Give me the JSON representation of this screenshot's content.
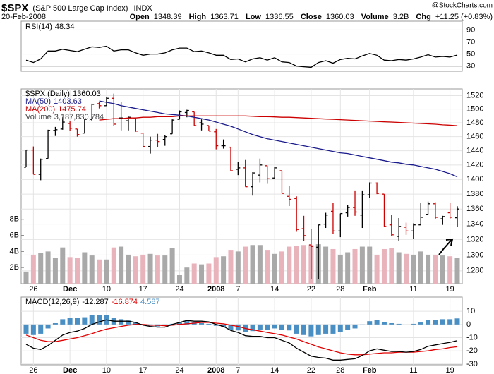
{
  "header": {
    "symbol": "$SPX",
    "name": "(S&P 500 Large Cap Index)",
    "exchange": "INDX",
    "date": "20-Feb-2008",
    "source": "@StockCharts.com",
    "stat_labels": [
      "Open",
      "High",
      "Low",
      "Close",
      "Volume",
      "Chg"
    ],
    "volume": "3.2B",
    "change": "+11.25 (+0.83%)"
  },
  "chart_data": [
    {
      "type": "line",
      "name": "RSI(14)",
      "ylim": [
        21.5,
        104.5
      ],
      "yticks": [
        30,
        50,
        70,
        90
      ],
      "levels": [
        30,
        70
      ],
      "grid": true,
      "series": [
        {
          "color": "#000000",
          "values": [
            40,
            36,
            42,
            55,
            55,
            58,
            56,
            54,
            58,
            62,
            61,
            63,
            55,
            57,
            57,
            52,
            48,
            50,
            50,
            52,
            57,
            60,
            60,
            54,
            55,
            52,
            48,
            48,
            41,
            42,
            37,
            42,
            44,
            40,
            44,
            37,
            36,
            30,
            29,
            28,
            36,
            39,
            35,
            41,
            43,
            42,
            47,
            51,
            48,
            40,
            39,
            41,
            40,
            42,
            45,
            49,
            45,
            46,
            45,
            48.34
          ]
        }
      ]
    },
    {
      "type": "ohlc",
      "name": "$SPX (Daily)",
      "log": true,
      "grid": true,
      "ylim": [
        1264,
        1530
      ],
      "yticks": [
        1280,
        1300,
        1320,
        1340,
        1360,
        1380,
        1400,
        1420,
        1440,
        1460,
        1480,
        1500,
        1520
      ],
      "up_color": "#000000",
      "down_color": "#cc0000",
      "categories": [
        null,
        "26",
        null,
        null,
        null,
        null,
        "Dec",
        null,
        null,
        null,
        null,
        "10",
        null,
        null,
        null,
        null,
        "17",
        null,
        null,
        null,
        null,
        "24",
        null,
        null,
        null,
        null,
        "2008",
        null,
        null,
        "7",
        null,
        null,
        null,
        null,
        "14",
        null,
        null,
        null,
        null,
        "22",
        null,
        null,
        null,
        "28",
        null,
        null,
        null,
        "Feb",
        null,
        null,
        null,
        null,
        null,
        "11",
        null,
        null,
        null,
        null,
        "19",
        null
      ],
      "open": [
        1417,
        1441,
        1407,
        1429,
        1469,
        1471,
        1479,
        1471,
        1465,
        1485,
        1508,
        1505,
        1516,
        1487,
        1483,
        1487,
        1465,
        1446,
        1455,
        1456,
        1464,
        1485,
        1495,
        1496,
        1480,
        1476,
        1467,
        1447,
        1445,
        1414,
        1416,
        1390,
        1406,
        1419,
        1402,
        1412,
        1377,
        1374,
        1334,
        1313,
        1310,
        1340,
        1357,
        1331,
        1355,
        1362,
        1352,
        1379,
        1395,
        1380,
        1339,
        1324,
        1336,
        1331,
        1339,
        1353,
        1367,
        1347,
        1355,
        1348.39
      ],
      "high": [
        1441,
        1446,
        1429,
        1470,
        1474,
        1488,
        1482,
        1471,
        1486,
        1508,
        1511,
        1518,
        1523,
        1511,
        1489,
        1487,
        1465,
        1460,
        1464,
        1462,
        1485,
        1498,
        1499,
        1496,
        1485,
        1476,
        1471,
        1456,
        1445,
        1424,
        1427,
        1410,
        1429,
        1419,
        1417,
        1412,
        1391,
        1377,
        1351,
        1334,
        1339,
        1355,
        1368,
        1354,
        1365,
        1385,
        1385,
        1396,
        1396,
        1380,
        1352,
        1348,
        1342,
        1341,
        1368,
        1370,
        1369,
        1351,
        1368,
        1363.71
      ],
      "low": [
        1417,
        1407,
        1399,
        1429,
        1461,
        1470,
        1468,
        1460,
        1465,
        1483,
        1501,
        1505,
        1475,
        1469,
        1469,
        1467,
        1445,
        1436,
        1445,
        1447,
        1464,
        1485,
        1488,
        1476,
        1469,
        1468,
        1442,
        1443,
        1411,
        1406,
        1390,
        1378,
        1396,
        1394,
        1402,
        1381,
        1364,
        1330,
        1318,
        1270,
        1270,
        1335,
        1327,
        1323,
        1350,
        1351,
        1335,
        1375,
        1380,
        1336,
        1324,
        1318,
        1326,
        1321,
        1339,
        1353,
        1347,
        1339,
        1347,
        1336.55
      ],
      "close": [
        1441,
        1407,
        1428,
        1469,
        1470,
        1481,
        1472,
        1463,
        1485,
        1507,
        1505,
        1516,
        1478,
        1487,
        1488,
        1468,
        1446,
        1455,
        1453,
        1460,
        1484,
        1496,
        1498,
        1476,
        1478,
        1468,
        1447,
        1447,
        1412,
        1416,
        1390,
        1409,
        1420,
        1401,
        1416,
        1381,
        1373,
        1333,
        1325,
        1311,
        1339,
        1352,
        1331,
        1354,
        1362,
        1356,
        1379,
        1395,
        1381,
        1337,
        1326,
        1337,
        1331,
        1339,
        1349,
        1367,
        1349,
        1350,
        1349,
        1360.03
      ],
      "series": [
        {
          "name": "MA(50)",
          "color": "#1a1a8c",
          "values": [
            null,
            null,
            null,
            null,
            null,
            null,
            null,
            null,
            null,
            null,
            1512,
            1510,
            1508,
            1505,
            1503,
            1501,
            1499,
            1497,
            1495,
            1493,
            1492,
            1491,
            1490,
            1488,
            1486,
            1484,
            1481,
            1478,
            1475,
            1471,
            1467,
            1463,
            1460,
            1457,
            1455,
            1453,
            1451,
            1449,
            1447,
            1445,
            1443,
            1441,
            1439,
            1437,
            1436,
            1434,
            1432,
            1430,
            1428,
            1426,
            1424,
            1423,
            1421,
            1420,
            1418,
            1416,
            1414,
            1411,
            1408,
            1403.63
          ]
        },
        {
          "name": "MA(200)",
          "color": "#cc0000",
          "values": [
            null,
            null,
            null,
            null,
            null,
            null,
            null,
            null,
            null,
            null,
            1484,
            1485,
            1486,
            1486,
            1487,
            1487,
            1488,
            1488,
            1489,
            1489,
            1489,
            1490,
            1490,
            1490,
            1490,
            1490,
            1490,
            1490,
            1490,
            1490,
            1490,
            1489.5,
            1489,
            1489,
            1488.5,
            1488,
            1488,
            1487.5,
            1487,
            1486.5,
            1486,
            1485.5,
            1485,
            1484.5,
            1484,
            1483.5,
            1483,
            1482.5,
            1482,
            1481.5,
            1481,
            1480.5,
            1480,
            1479.5,
            1479,
            1478.5,
            1478,
            1477,
            1476.5,
            1475.74
          ]
        }
      ],
      "volume": {
        "name": "Volume",
        "value_label": "3,187,830,784",
        "up_color": "#a9a9a9",
        "down_color": "#e9b3bc",
        "ylim": [
          0,
          24200000000
        ],
        "yticks": [
          {
            "value": 2000000000,
            "label": "2B"
          },
          {
            "value": 4000000000,
            "label": "4B"
          },
          {
            "value": 6000000000,
            "label": "6B"
          },
          {
            "value": 8000000000,
            "label": "8B"
          }
        ],
        "values": [
          1500000000,
          3600000000,
          3800000000,
          4000000000,
          3200000000,
          4500000000,
          3300000000,
          3200000000,
          3900000000,
          3500000000,
          3000000000,
          3000000000,
          4500000000,
          4600000000,
          3600000000,
          3400000000,
          3600000000,
          3700000000,
          3500000000,
          3500000000,
          4400000000,
          1100000000,
          2000000000,
          2500000000,
          2400000000,
          2500000000,
          3300000000,
          3400000000,
          4200000000,
          4000000000,
          4600000000,
          4800000000,
          4800000000,
          4200000000,
          3700000000,
          4000000000,
          4600000000,
          4700000000,
          4800000000,
          4800000000,
          4900000000,
          4600000000,
          4300000000,
          3600000000,
          3900000000,
          4300000000,
          4600000000,
          4600000000,
          3600000000,
          4300000000,
          4400000000,
          3900000000,
          3700000000,
          3600000000,
          4000000000,
          3600000000,
          3600000000,
          3500000000,
          3400000000,
          3187830784
        ]
      }
    },
    {
      "type": "macd",
      "name": "MACD(12,26,9)",
      "ylim": [
        -30.6,
        20.8
      ],
      "yticks": [
        -30,
        -20,
        -10,
        0,
        10
      ],
      "grid": true,
      "categories": [
        null,
        "26",
        null,
        null,
        null,
        null,
        "Dec",
        null,
        null,
        null,
        null,
        "10",
        null,
        null,
        null,
        null,
        "17",
        null,
        null,
        null,
        null,
        "24",
        null,
        null,
        null,
        null,
        "2008",
        null,
        null,
        "7",
        null,
        null,
        null,
        null,
        "14",
        null,
        null,
        null,
        null,
        "22",
        null,
        null,
        null,
        "28",
        null,
        null,
        null,
        "Feb",
        null,
        null,
        null,
        null,
        null,
        "11",
        null,
        null,
        null,
        null,
        "19",
        null
      ],
      "series": [
        {
          "type": "bar",
          "color": "#4a8fc4",
          "values": [
            -7,
            -8,
            -7,
            -3,
            1,
            4,
            5,
            5,
            5.5,
            7,
            7,
            7,
            5,
            4,
            3,
            1.5,
            -0.5,
            -1,
            -1.5,
            -1,
            0.5,
            1.5,
            2.5,
            1.5,
            1,
            0.5,
            -1,
            -2,
            -4,
            -4.5,
            -5.5,
            -5,
            -4,
            -4,
            -3,
            -4,
            -4.5,
            -7,
            -8,
            -9,
            -8,
            -7,
            -7,
            -5.5,
            -4,
            -3,
            -0.5,
            2.5,
            3.5,
            2,
            1,
            0.5,
            0,
            0.5,
            1.5,
            3.5,
            3.5,
            4,
            4,
            4.587
          ]
        },
        {
          "type": "line",
          "color": "#e00000",
          "values": [
            -8,
            -10,
            -12,
            -13,
            -13,
            -12,
            -11,
            -10,
            -8.5,
            -7,
            -5,
            -3.5,
            -2.5,
            -1.5,
            -0.5,
            0,
            0,
            -0.5,
            -0.5,
            -1,
            -0.5,
            0,
            0.5,
            1,
            1.5,
            1.5,
            1,
            0.5,
            -0.5,
            -1.5,
            -3,
            -4,
            -5,
            -6,
            -7,
            -8,
            -9.5,
            -11,
            -13,
            -15,
            -17,
            -18.5,
            -20,
            -21.5,
            -22.5,
            -23,
            -23,
            -22.5,
            -22,
            -21.5,
            -21.5,
            -21,
            -21,
            -21,
            -20.5,
            -20,
            -19,
            -18.5,
            -17.5,
            -16.874
          ]
        },
        {
          "type": "line",
          "color": "#000000",
          "values": [
            -15,
            -18,
            -19,
            -16,
            -12,
            -8,
            -6,
            -5,
            -3,
            0,
            2,
            3.5,
            2.5,
            2.5,
            2.5,
            1.5,
            -0.5,
            -1.5,
            -2,
            -2,
            0,
            1.5,
            3,
            2.5,
            2.5,
            2,
            0,
            -1.5,
            -4.5,
            -6,
            -8.5,
            -9,
            -9,
            -10,
            -10,
            -12,
            -14,
            -18,
            -21,
            -24,
            -25,
            -25.5,
            -27,
            -27,
            -26.5,
            -26,
            -23.5,
            -20,
            -18.5,
            -19.5,
            -20.5,
            -20.5,
            -21,
            -20.5,
            -19,
            -16.5,
            -15.5,
            -14.5,
            -13.5,
            -12.287
          ]
        }
      ]
    }
  ]
}
